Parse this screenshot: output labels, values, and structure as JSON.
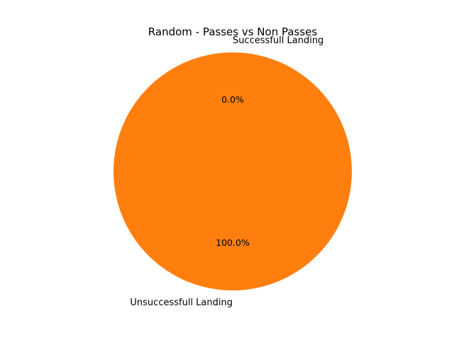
{
  "chart_data": {
    "type": "pie",
    "title": "Random - Passes vs Non Passes",
    "slices": [
      {
        "label": "Successfull Landing",
        "value": 0,
        "percent_label": "0.0%",
        "color": "#1f77b4"
      },
      {
        "label": "Unsuccessfull Landing",
        "value": 100,
        "percent_label": "100.0%",
        "color": "#ff7f0e"
      }
    ],
    "start_angle_deg": 90,
    "counterclockwise": true,
    "legend": "none"
  }
}
